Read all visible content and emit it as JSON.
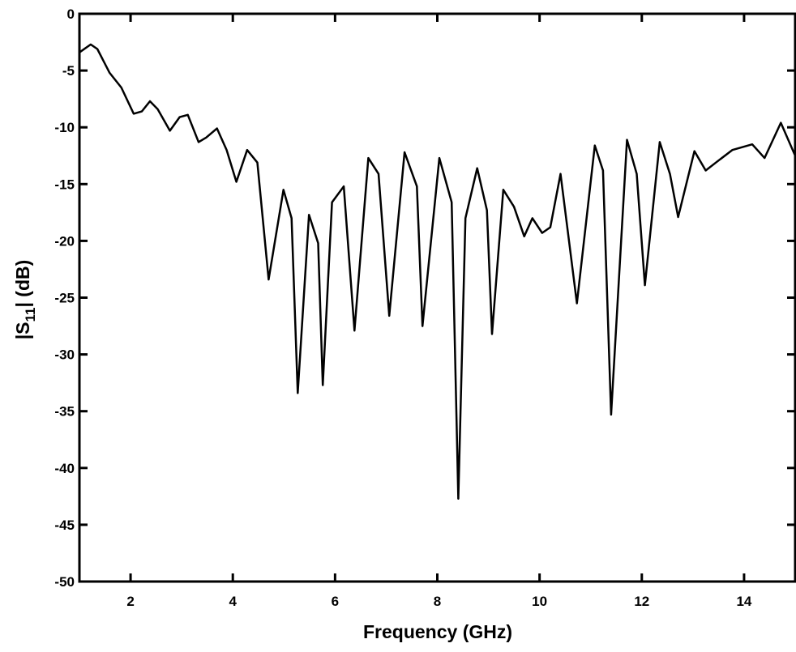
{
  "chart_data": {
    "type": "line",
    "xlabel": "Frequency (GHz)",
    "ylabel": {
      "text": "|S",
      "subscript": "11",
      "suffix": "| (dB)"
    },
    "xlim": [
      1,
      15
    ],
    "ylim": [
      -50,
      0
    ],
    "xticks": [
      2,
      4,
      6,
      8,
      10,
      12,
      14
    ],
    "yticks": [
      0,
      -5,
      -10,
      -15,
      -20,
      -25,
      -30,
      -35,
      -40,
      -45,
      -50
    ],
    "color": "#000000",
    "x": [
      1.0,
      1.22,
      1.35,
      1.59,
      1.82,
      2.06,
      2.22,
      2.38,
      2.53,
      2.77,
      2.96,
      3.12,
      3.33,
      3.48,
      3.69,
      3.88,
      4.07,
      4.28,
      4.48,
      4.7,
      4.99,
      5.15,
      5.27,
      5.49,
      5.67,
      5.76,
      5.94,
      6.17,
      6.38,
      6.65,
      6.85,
      7.06,
      7.36,
      7.6,
      7.71,
      8.04,
      8.28,
      8.41,
      8.55,
      8.78,
      8.97,
      9.07,
      9.29,
      9.5,
      9.7,
      9.86,
      10.05,
      10.21,
      10.41,
      10.73,
      11.08,
      11.24,
      11.4,
      11.71,
      11.9,
      12.06,
      12.35,
      12.55,
      12.71,
      13.03,
      13.25,
      13.45,
      13.77,
      14.16,
      14.4,
      14.72,
      15.0
    ],
    "values": [
      -3.4,
      -2.7,
      -3.1,
      -5.2,
      -6.5,
      -8.8,
      -8.6,
      -7.7,
      -8.4,
      -10.3,
      -9.1,
      -8.9,
      -11.3,
      -10.9,
      -10.1,
      -12.0,
      -14.8,
      -12.0,
      -13.1,
      -23.4,
      -15.5,
      -18.0,
      -33.4,
      -17.7,
      -20.2,
      -32.7,
      -16.6,
      -15.2,
      -27.9,
      -12.7,
      -14.1,
      -26.6,
      -12.2,
      -15.2,
      -27.5,
      -12.7,
      -16.6,
      -42.7,
      -18.0,
      -13.6,
      -17.3,
      -28.2,
      -15.5,
      -17.0,
      -19.6,
      -18.0,
      -19.3,
      -18.8,
      -14.1,
      -25.5,
      -11.6,
      -13.8,
      -35.3,
      -11.1,
      -14.1,
      -23.9,
      -11.3,
      -14.1,
      -17.9,
      -12.1,
      -13.8,
      -13.1,
      -12.0,
      -11.5,
      -12.7,
      -9.6,
      -12.5
    ]
  }
}
